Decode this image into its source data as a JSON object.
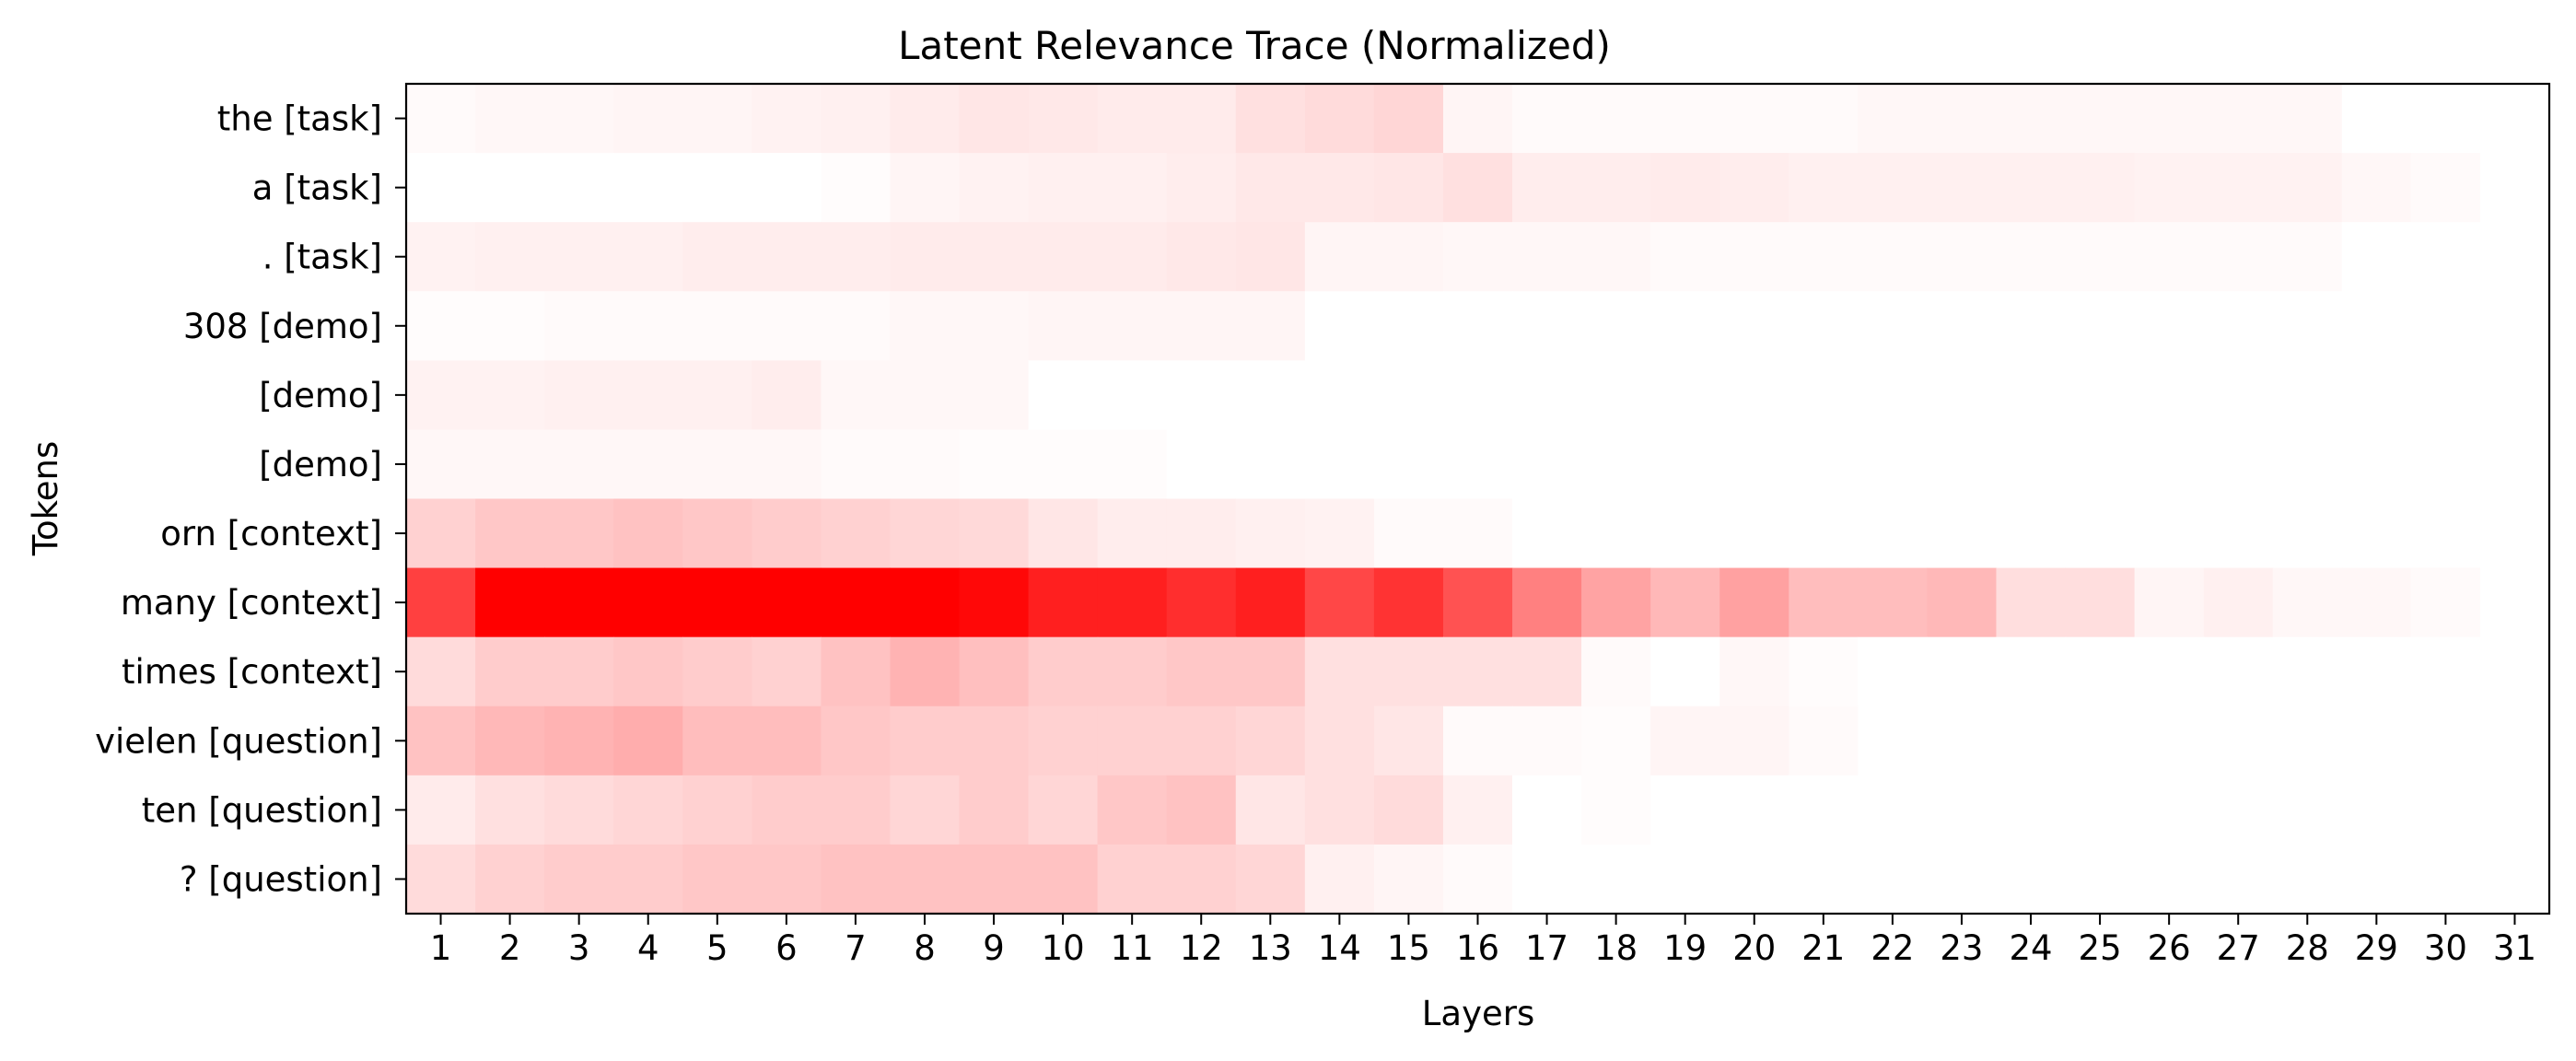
{
  "chart_data": {
    "type": "heatmap",
    "title": "Latent Relevance Trace (Normalized)",
    "xlabel": "Layers",
    "ylabel": "Tokens",
    "x_categories": [
      "1",
      "2",
      "3",
      "4",
      "5",
      "6",
      "7",
      "8",
      "9",
      "10",
      "11",
      "12",
      "13",
      "14",
      "15",
      "16",
      "17",
      "18",
      "19",
      "20",
      "21",
      "22",
      "23",
      "24",
      "25",
      "26",
      "27",
      "28",
      "29",
      "30",
      "31"
    ],
    "y_categories": [
      "the [task]",
      "a [task]",
      ". [task]",
      "308 [demo]",
      "[demo]",
      "[demo]",
      "orn [context]",
      "many [context]",
      "times [context]",
      "vielen [question]",
      "ten [question]",
      "? [question]"
    ],
    "color_low": "#ffffff",
    "color_high": "#ff0000",
    "value_range": [
      0,
      1
    ],
    "grid": false,
    "legend": "none",
    "values": [
      [
        0.02,
        0.03,
        0.03,
        0.04,
        0.04,
        0.05,
        0.06,
        0.08,
        0.1,
        0.09,
        0.08,
        0.08,
        0.12,
        0.14,
        0.16,
        0.04,
        0.02,
        0.02,
        0.02,
        0.02,
        0.02,
        0.03,
        0.03,
        0.03,
        0.03,
        0.03,
        0.03,
        0.03,
        0.0,
        0.0,
        0.0
      ],
      [
        0.0,
        0.0,
        0.0,
        0.0,
        0.0,
        0.0,
        0.01,
        0.04,
        0.05,
        0.06,
        0.06,
        0.07,
        0.09,
        0.09,
        0.1,
        0.12,
        0.07,
        0.07,
        0.08,
        0.07,
        0.06,
        0.06,
        0.06,
        0.06,
        0.06,
        0.05,
        0.05,
        0.05,
        0.03,
        0.02,
        0.0
      ],
      [
        0.05,
        0.06,
        0.06,
        0.06,
        0.07,
        0.07,
        0.07,
        0.08,
        0.08,
        0.08,
        0.08,
        0.09,
        0.1,
        0.04,
        0.04,
        0.03,
        0.03,
        0.03,
        0.02,
        0.02,
        0.02,
        0.02,
        0.02,
        0.02,
        0.02,
        0.02,
        0.02,
        0.02,
        0.0,
        0.0,
        0.0
      ],
      [
        0.01,
        0.01,
        0.02,
        0.02,
        0.02,
        0.02,
        0.02,
        0.03,
        0.03,
        0.04,
        0.04,
        0.04,
        0.04,
        0.0,
        0.0,
        0.0,
        0.0,
        0.0,
        0.0,
        0.0,
        0.0,
        0.0,
        0.0,
        0.0,
        0.0,
        0.0,
        0.0,
        0.0,
        0.0,
        0.0,
        0.0
      ],
      [
        0.05,
        0.05,
        0.06,
        0.06,
        0.06,
        0.07,
        0.03,
        0.03,
        0.03,
        0.0,
        0.0,
        0.0,
        0.0,
        0.0,
        0.0,
        0.0,
        0.0,
        0.0,
        0.0,
        0.0,
        0.0,
        0.0,
        0.0,
        0.0,
        0.0,
        0.0,
        0.0,
        0.0,
        0.0,
        0.0,
        0.0
      ],
      [
        0.03,
        0.03,
        0.03,
        0.03,
        0.03,
        0.03,
        0.02,
        0.02,
        0.01,
        0.01,
        0.01,
        0.0,
        0.0,
        0.0,
        0.0,
        0.0,
        0.0,
        0.0,
        0.0,
        0.0,
        0.0,
        0.0,
        0.0,
        0.0,
        0.0,
        0.0,
        0.0,
        0.0,
        0.0,
        0.0,
        0.0
      ],
      [
        0.18,
        0.22,
        0.22,
        0.24,
        0.22,
        0.2,
        0.18,
        0.16,
        0.15,
        0.1,
        0.07,
        0.07,
        0.06,
        0.05,
        0.02,
        0.02,
        0.0,
        0.0,
        0.0,
        0.0,
        0.0,
        0.0,
        0.0,
        0.0,
        0.0,
        0.0,
        0.0,
        0.0,
        0.0,
        0.0,
        0.0
      ],
      [
        0.75,
        1.0,
        1.0,
        1.0,
        1.0,
        1.0,
        1.0,
        1.0,
        0.97,
        0.88,
        0.88,
        0.82,
        0.88,
        0.72,
        0.8,
        0.68,
        0.5,
        0.36,
        0.28,
        0.37,
        0.26,
        0.26,
        0.28,
        0.13,
        0.13,
        0.04,
        0.06,
        0.03,
        0.03,
        0.02,
        0.0
      ],
      [
        0.14,
        0.2,
        0.2,
        0.22,
        0.2,
        0.18,
        0.24,
        0.3,
        0.25,
        0.2,
        0.2,
        0.22,
        0.22,
        0.12,
        0.12,
        0.12,
        0.12,
        0.02,
        0.0,
        0.03,
        0.01,
        0.0,
        0.0,
        0.0,
        0.0,
        0.0,
        0.0,
        0.0,
        0.0,
        0.0,
        0.0
      ],
      [
        0.24,
        0.28,
        0.3,
        0.32,
        0.26,
        0.26,
        0.22,
        0.2,
        0.2,
        0.18,
        0.18,
        0.18,
        0.16,
        0.12,
        0.1,
        0.02,
        0.02,
        0.01,
        0.04,
        0.04,
        0.02,
        0.0,
        0.0,
        0.0,
        0.0,
        0.0,
        0.0,
        0.0,
        0.0,
        0.0,
        0.0
      ],
      [
        0.08,
        0.12,
        0.14,
        0.16,
        0.18,
        0.2,
        0.2,
        0.16,
        0.2,
        0.16,
        0.22,
        0.24,
        0.1,
        0.12,
        0.14,
        0.06,
        0.0,
        0.01,
        0.0,
        0.0,
        0.0,
        0.0,
        0.0,
        0.0,
        0.0,
        0.0,
        0.0,
        0.0,
        0.0,
        0.0,
        0.0
      ],
      [
        0.14,
        0.18,
        0.2,
        0.2,
        0.22,
        0.22,
        0.24,
        0.24,
        0.24,
        0.24,
        0.18,
        0.18,
        0.16,
        0.06,
        0.04,
        0.02,
        0.0,
        0.0,
        0.0,
        0.0,
        0.0,
        0.0,
        0.0,
        0.0,
        0.0,
        0.0,
        0.0,
        0.0,
        0.0,
        0.0,
        0.0
      ]
    ]
  }
}
